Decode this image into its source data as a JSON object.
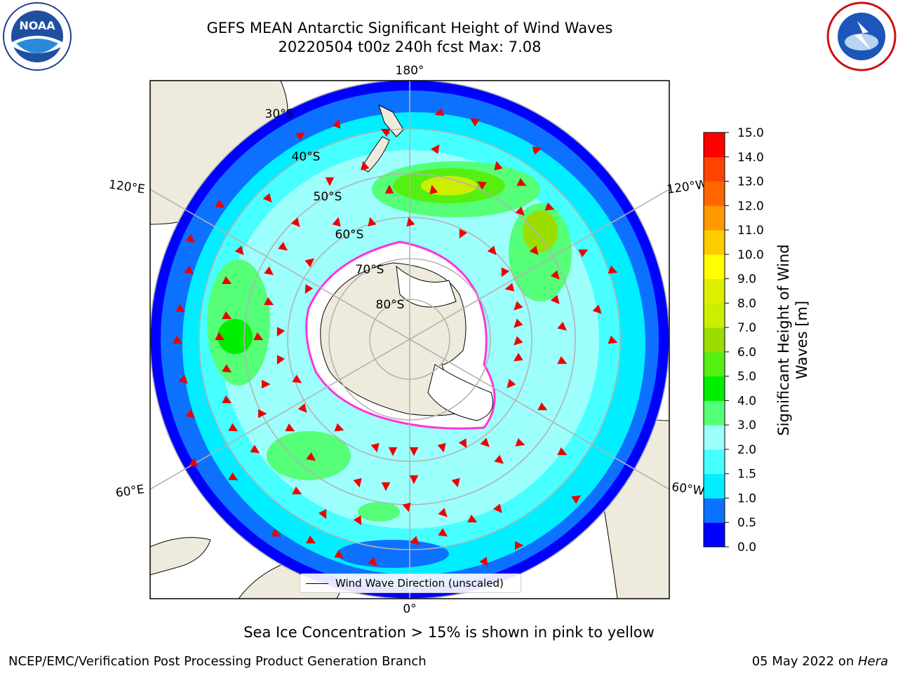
{
  "title": {
    "line1": "GEFS MEAN Antarctic Significant Height of Wind Waves",
    "line2": "20220504 t00z 240h fcst   Max: 7.08"
  },
  "logos": {
    "noaa": {
      "text": "NOAA",
      "ring_text": "NATIONAL OCEANIC AND ATMOSPHERIC ADMINISTRATION · U.S. DEPARTMENT OF COMMERCE"
    },
    "nws": {
      "ring_text": "NATIONAL WEATHER SERVICE"
    }
  },
  "map": {
    "projection": "south-polar-stereographic",
    "longitude_labels": [
      "180°",
      "120°E",
      "120°W",
      "60°E",
      "60°W",
      "0°"
    ],
    "latitude_labels": [
      "30°S",
      "40°S",
      "50°S",
      "60°S",
      "70°S",
      "80°S"
    ],
    "colors": {
      "land": "#efebdc",
      "ice": "#ffffff",
      "ice_edge_pink": "#ff33dd",
      "ice_edge_yellow": "#ffcc33",
      "arrow": "#ee0000",
      "grid": "#b3b3b3"
    }
  },
  "legend": {
    "label": "Wind Wave Direction (unscaled)"
  },
  "colorbar": {
    "label_line1": "Significant Height of Wind",
    "label_line2": "Waves [m]",
    "ticks": [
      "0.0",
      "0.5",
      "1.0",
      "1.5",
      "2.0",
      "3.0",
      "4.0",
      "5.0",
      "6.0",
      "7.0",
      "8.0",
      "9.0",
      "10.0",
      "11.0",
      "12.0",
      "13.0",
      "14.0",
      "15.0"
    ],
    "colors": [
      "#0000ff",
      "#0d71ff",
      "#00eeff",
      "#48ffff",
      "#9dfffc",
      "#55ff77",
      "#00ee00",
      "#55ef11",
      "#9cdd00",
      "#ccee00",
      "#ddee00",
      "#ffff00",
      "#ffcc00",
      "#ff9900",
      "#ff6600",
      "#ff4400",
      "#ff0000"
    ]
  },
  "footer": {
    "note": "Sea Ice Concentration > 15% is shown in pink to yellow",
    "left": "NCEP/EMC/Verification Post Processing Product Generation Branch",
    "right_prefix": "05 May 2022 on ",
    "right_host": "Hera"
  }
}
